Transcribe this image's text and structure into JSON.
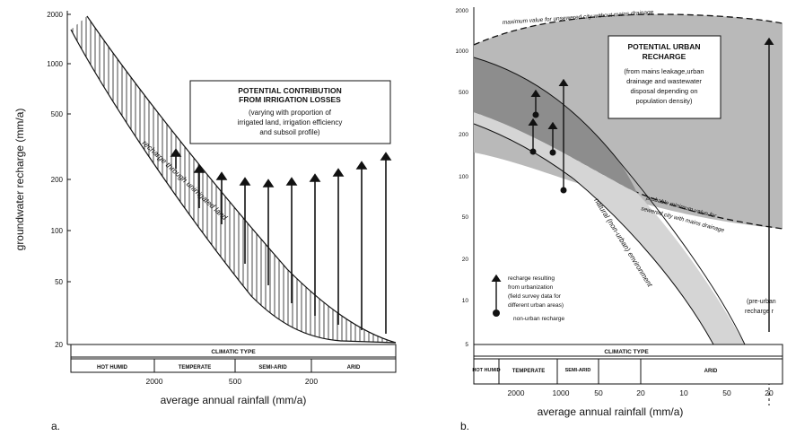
{
  "panel_a": {
    "label": "a.",
    "ylabel": "groundwater recharge (mm/a)",
    "xlabel": "average annual rainfall (mm/a)",
    "yticks": [
      "2000",
      "1000",
      "500",
      "200",
      "100",
      "50",
      "20"
    ],
    "box_title_1": "POTENTIAL CONTRIBUTION",
    "box_title_2": "FROM IRRIGATION LOSSES",
    "box_text_1": "(varying with proportion of",
    "box_text_2": "irrigated land,  irrigation efficiency",
    "box_text_3": "and subsoil profile)",
    "band_label": "recharge through unirrigated land",
    "climatic_type": "CLIMATIC TYPE",
    "climates": [
      "HOT HUMID",
      "TEMPERATE",
      "SEMI-ARID",
      "ARID"
    ],
    "xticks": [
      "2000",
      "500",
      "200"
    ]
  },
  "panel_b": {
    "label": "b.",
    "xlabel": "average annual rainfall (mm/a)",
    "yticks": [
      "2000",
      "1000",
      "500",
      "200",
      "100",
      "50",
      "20",
      "10",
      "5"
    ],
    "top_note": "maximum value for unsewered city without mains drainage",
    "box_title_1": "POTENTIAL URBAN",
    "box_title_2": "RECHARGE",
    "box_text_1": "(from mains leakage,urban",
    "box_text_2": "drainage and wastewater",
    "box_text_3": "disposal depending on",
    "box_text_4": "population density)",
    "lower_note_1": "probable minimum value for",
    "lower_note_2": "sewered city with mains drainage",
    "band_label": "natural (non-urban) environment",
    "legend_1": "recharge resulting",
    "legend_2": "from urbanization",
    "legend_3": "(field survey data for",
    "legend_4": "different urban areas)",
    "legend_5": "non-urban recharge",
    "pre_urban_1": "(pre-urban",
    "pre_urban_2": "recharge r",
    "climatic_type": "CLIMATIC TYPE",
    "climates": [
      "HOT HUMID",
      "TEMPERATE",
      "SEMI-ARID",
      "ARID"
    ],
    "xticks": [
      "2000",
      "1000",
      "50",
      "20",
      "10",
      "50",
      "20"
    ]
  }
}
